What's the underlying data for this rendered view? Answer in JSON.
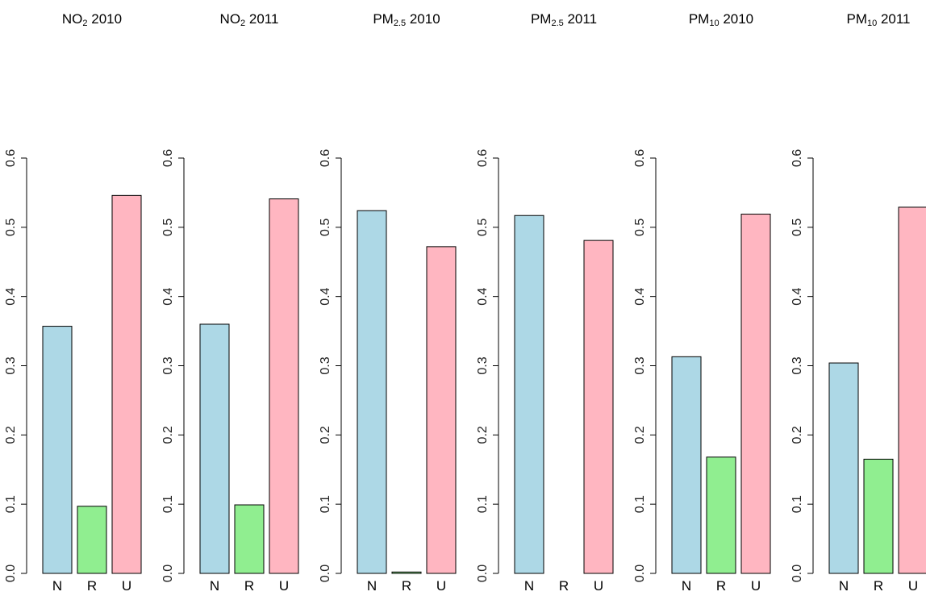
{
  "colors": {
    "N": "#add8e6",
    "R": "#90ee90",
    "U": "#ffb6c1"
  },
  "chart_data": [
    {
      "type": "bar",
      "title": {
        "base": "NO",
        "sub": "2",
        "year": "2010"
      },
      "categories": [
        "N",
        "R",
        "U"
      ],
      "values": [
        0.357,
        0.097,
        0.546
      ],
      "ylim": [
        0,
        0.6
      ],
      "yticks": [
        "0.0",
        "0.1",
        "0.2",
        "0.3",
        "0.4",
        "0.5",
        "0.6"
      ],
      "grid": false
    },
    {
      "type": "bar",
      "title": {
        "base": "NO",
        "sub": "2",
        "year": "2011"
      },
      "categories": [
        "N",
        "R",
        "U"
      ],
      "values": [
        0.36,
        0.099,
        0.541
      ],
      "ylim": [
        0,
        0.6
      ],
      "yticks": [
        "0.0",
        "0.1",
        "0.2",
        "0.3",
        "0.4",
        "0.5",
        "0.6"
      ],
      "grid": false
    },
    {
      "type": "bar",
      "title": {
        "base": "PM",
        "sub": "2.5",
        "year": "2010"
      },
      "categories": [
        "N",
        "R",
        "U"
      ],
      "values": [
        0.524,
        0.002,
        0.472
      ],
      "ylim": [
        0,
        0.6
      ],
      "yticks": [
        "0.0",
        "0.1",
        "0.2",
        "0.3",
        "0.4",
        "0.5",
        "0.6"
      ],
      "grid": false
    },
    {
      "type": "bar",
      "title": {
        "base": "PM",
        "sub": "2.5",
        "year": "2011"
      },
      "categories": [
        "N",
        "R",
        "U"
      ],
      "values": [
        0.517,
        0.0,
        0.481
      ],
      "ylim": [
        0,
        0.6
      ],
      "yticks": [
        "0.0",
        "0.1",
        "0.2",
        "0.3",
        "0.4",
        "0.5",
        "0.6"
      ],
      "grid": false
    },
    {
      "type": "bar",
      "title": {
        "base": "PM",
        "sub": "10",
        "year": "2010"
      },
      "categories": [
        "N",
        "R",
        "U"
      ],
      "values": [
        0.313,
        0.168,
        0.519
      ],
      "ylim": [
        0,
        0.6
      ],
      "yticks": [
        "0.0",
        "0.1",
        "0.2",
        "0.3",
        "0.4",
        "0.5",
        "0.6"
      ],
      "grid": false
    },
    {
      "type": "bar",
      "title": {
        "base": "PM",
        "sub": "10",
        "year": "2011"
      },
      "categories": [
        "N",
        "R",
        "U"
      ],
      "values": [
        0.304,
        0.165,
        0.529
      ],
      "ylim": [
        0,
        0.6
      ],
      "yticks": [
        "0.0",
        "0.1",
        "0.2",
        "0.3",
        "0.4",
        "0.5",
        "0.6"
      ],
      "grid": false
    }
  ]
}
